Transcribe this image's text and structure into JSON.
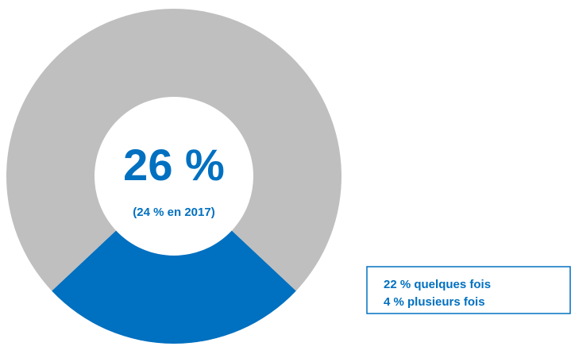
{
  "chart_data": {
    "type": "donut",
    "values": [
      26,
      74
    ],
    "value_labels": [
      "26 %",
      null
    ],
    "colors": [
      "#0070c0",
      "#bfbfbf"
    ],
    "subtitle": "(24 % en 2017)",
    "annotations": [
      "22 % quelques fois",
      "4 % plusieurs fois"
    ]
  }
}
